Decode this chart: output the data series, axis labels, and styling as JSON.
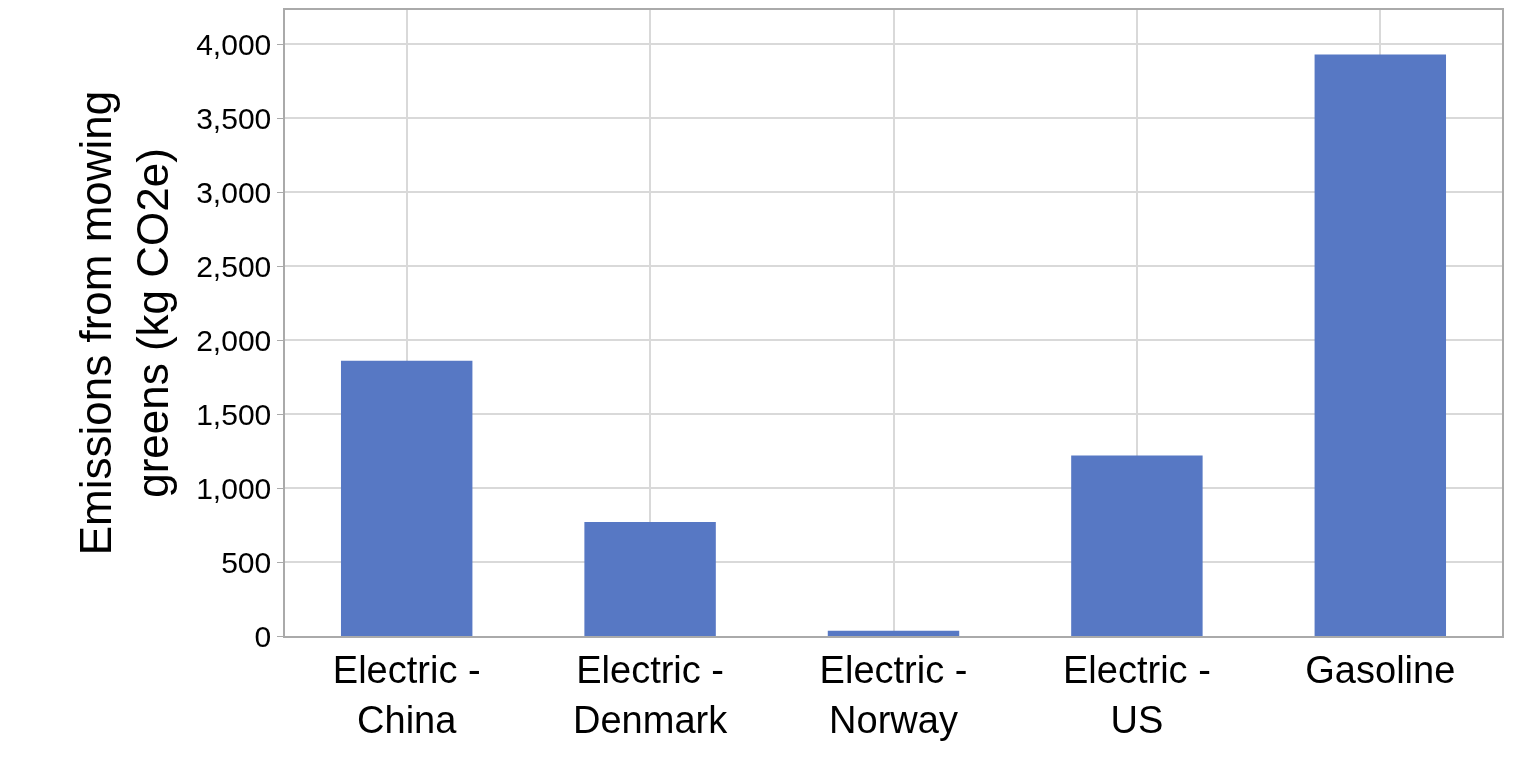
{
  "chart_data": {
    "type": "bar",
    "ylabel": "Emissions from mowing greens (kg CO2e)",
    "categories": [
      "Electric - China",
      "Electric - Denmark",
      "Electric - Norway",
      "Electric - US",
      "Gasoline"
    ],
    "values": [
      1860,
      770,
      35,
      1220,
      3930
    ],
    "color": "#5778c4",
    "ylim": [
      0,
      4230
    ],
    "yticks": [
      {
        "value": 0,
        "label": "0"
      },
      {
        "value": 500,
        "label": "500"
      },
      {
        "value": 1000,
        "label": "1,000"
      },
      {
        "value": 1500,
        "label": "1,500"
      },
      {
        "value": 2000,
        "label": "2,000"
      },
      {
        "value": 2500,
        "label": "2,500"
      },
      {
        "value": 3000,
        "label": "3,000"
      },
      {
        "value": 3500,
        "label": "3,500"
      },
      {
        "value": 4000,
        "label": "4,000"
      }
    ],
    "grid": true
  }
}
